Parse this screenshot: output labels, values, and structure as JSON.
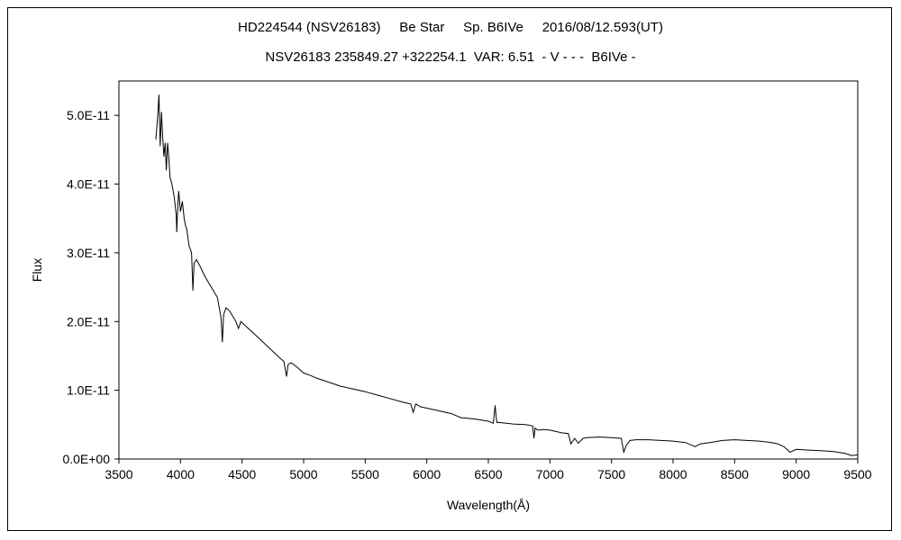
{
  "chart_data": {
    "type": "line",
    "title": "HD224544 (NSV26183)     Be Star     Sp. B6IVe     2016/08/12.593(UT)",
    "subtitle": "NSV26183 235849.27 +322254.1  VAR: 6.51  - V - - -  B6IVe -",
    "xlabel": "Wavelength(Å)",
    "ylabel": "Flux",
    "xlim": [
      3500,
      9500
    ],
    "ylim": [
      0,
      5.5e-11
    ],
    "x_ticks": [
      3500,
      4000,
      4500,
      5000,
      5500,
      6000,
      6500,
      7000,
      7500,
      8000,
      8500,
      9000,
      9500
    ],
    "x_tick_labels": [
      "3500",
      "4000",
      "4500",
      "5000",
      "5500",
      "6000",
      "6500",
      "7000",
      "7500",
      "8000",
      "8500",
      "9000",
      "9500"
    ],
    "y_ticks": [
      0,
      1e-11,
      2e-11,
      3e-11,
      4e-11,
      5e-11
    ],
    "y_tick_labels": [
      "0.0E+00",
      "1.0E-11",
      "2.0E-11",
      "3.0E-11",
      "4.0E-11",
      "5.0E-11"
    ],
    "grid": false,
    "legend": "none",
    "line_color": "#000000",
    "series": [
      {
        "x": [
          3800,
          3815,
          3825,
          3835,
          3845,
          3855,
          3865,
          3875,
          3885,
          3895,
          3905,
          3915,
          3930,
          3950,
          3965,
          3970,
          3975,
          3985,
          4000,
          4015,
          4030,
          4040,
          4050,
          4070,
          4090,
          4101,
          4110,
          4130,
          4160,
          4200,
          4250,
          4300,
          4330,
          4340,
          4350,
          4370,
          4400,
          4450,
          4471,
          4490,
          4550,
          4600,
          4700,
          4800,
          4840,
          4861,
          4875,
          4900,
          4950,
          5000,
          5050,
          5100,
          5200,
          5300,
          5400,
          5500,
          5600,
          5700,
          5800,
          5870,
          5890,
          5910,
          5950,
          6000,
          6100,
          6200,
          6280,
          6300,
          6400,
          6500,
          6540,
          6555,
          6563,
          6570,
          6590,
          6650,
          6700,
          6800,
          6860,
          6870,
          6880,
          6900,
          6950,
          7000,
          7100,
          7150,
          7170,
          7200,
          7230,
          7270,
          7300,
          7400,
          7500,
          7580,
          7600,
          7620,
          7650,
          7700,
          7800,
          7900,
          8000,
          8100,
          8180,
          8220,
          8300,
          8400,
          8500,
          8600,
          8700,
          8800,
          8850,
          8900,
          8950,
          9000,
          9100,
          9200,
          9300,
          9400,
          9450,
          9500
        ],
        "y": [
          4.65e-11,
          5e-11,
          5.3e-11,
          4.55e-11,
          5.05e-11,
          4.7e-11,
          4.4e-11,
          4.6e-11,
          4.2e-11,
          4.6e-11,
          4.4e-11,
          4.1e-11,
          4e-11,
          3.8e-11,
          3.55e-11,
          3.3e-11,
          3.55e-11,
          3.9e-11,
          3.6e-11,
          3.75e-11,
          3.5e-11,
          3.4e-11,
          3.35e-11,
          3.1e-11,
          3e-11,
          2.45e-11,
          2.85e-11,
          2.9e-11,
          2.8e-11,
          2.65e-11,
          2.5e-11,
          2.35e-11,
          2.05e-11,
          1.7e-11,
          2.1e-11,
          2.2e-11,
          2.15e-11,
          2e-11,
          1.9e-11,
          2e-11,
          1.9e-11,
          1.82e-11,
          1.65e-11,
          1.48e-11,
          1.42e-11,
          1.2e-11,
          1.38e-11,
          1.4e-11,
          1.33e-11,
          1.25e-11,
          1.22e-11,
          1.18e-11,
          1.12e-11,
          1.06e-11,
          1.02e-11,
          9.8e-12,
          9.3e-12,
          8.8e-12,
          8.3e-12,
          8e-12,
          6.8e-12,
          8e-12,
          7.6e-12,
          7.4e-12,
          7e-12,
          6.6e-12,
          6e-12,
          6e-12,
          5.8e-12,
          5.5e-12,
          5.2e-12,
          7.8e-12,
          6.2e-12,
          5.3e-12,
          5.3e-12,
          5.2e-12,
          5.1e-12,
          5e-12,
          4.8e-12,
          3e-12,
          4.5e-12,
          4.2e-12,
          4.3e-12,
          4.2e-12,
          3.8e-12,
          3.7e-12,
          2.2e-12,
          3e-12,
          2.3e-12,
          3e-12,
          3.1e-12,
          3.2e-12,
          3.1e-12,
          3e-12,
          1e-12,
          2e-12,
          2.7e-12,
          2.8e-12,
          2.8e-12,
          2.7e-12,
          2.6e-12,
          2.4e-12,
          1.8e-12,
          2.2e-12,
          2.4e-12,
          2.7e-12,
          2.8e-12,
          2.7e-12,
          2.6e-12,
          2.4e-12,
          2.2e-12,
          1.8e-12,
          1e-12,
          1.4e-12,
          1.3e-12,
          1.2e-12,
          1.1e-12,
          8e-13,
          5e-13,
          6e-13
        ]
      }
    ]
  }
}
